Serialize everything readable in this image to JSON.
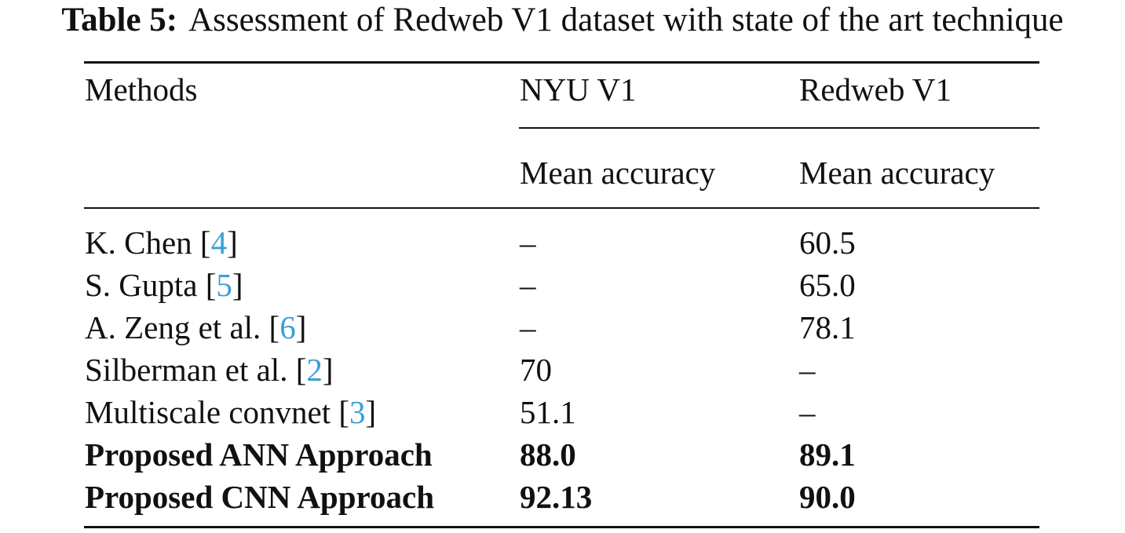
{
  "caption": {
    "label": "Table 5:",
    "text": "Assessment of Redweb V1 dataset with state of the art technique"
  },
  "header": {
    "methods": "Methods",
    "nyu": "NYU V1",
    "redweb": "Redweb V1",
    "nyu_metric": "Mean accuracy",
    "redweb_metric": "Mean accuracy"
  },
  "rows": [
    {
      "method": "K. Chen",
      "cite": "4",
      "nyu": "–",
      "redweb": "60.5",
      "bold": false
    },
    {
      "method": "S. Gupta",
      "cite": "5",
      "nyu": "–",
      "redweb": "65.0",
      "bold": false
    },
    {
      "method": "A. Zeng et al.",
      "cite": "6",
      "nyu": "–",
      "redweb": "78.1",
      "bold": false
    },
    {
      "method": "Silberman et al.",
      "cite": "2",
      "nyu": "70",
      "redweb": "–",
      "bold": false
    },
    {
      "method": "Multiscale convnet",
      "cite": "3",
      "nyu": "51.1",
      "redweb": "–",
      "bold": false
    },
    {
      "method": "Proposed ANN Approach",
      "cite": "",
      "nyu": "88.0",
      "redweb": "89.1",
      "bold": true
    },
    {
      "method": "Proposed CNN Approach",
      "cite": "",
      "nyu": "92.13",
      "redweb": "90.0",
      "bold": true
    }
  ],
  "colors": {
    "text": "#111111",
    "citation": "#3a9fd6"
  }
}
